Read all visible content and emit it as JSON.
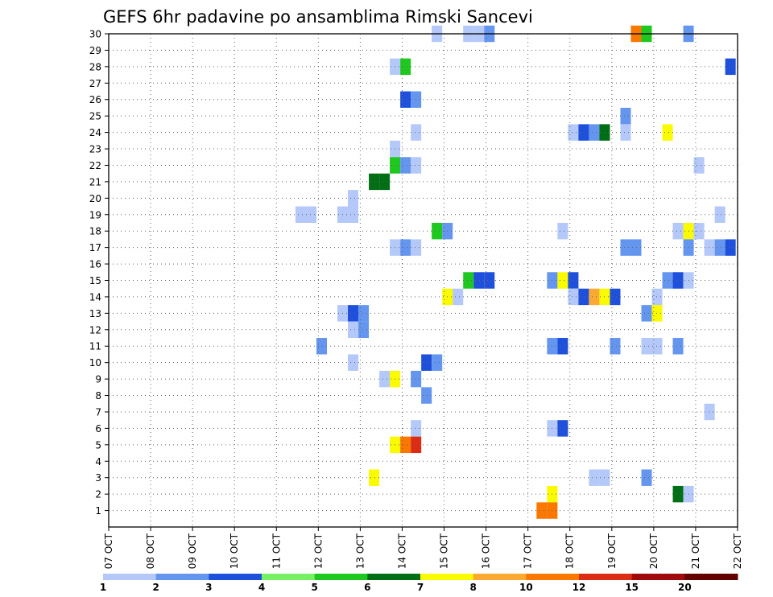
{
  "chart_data": {
    "type": "heatmap",
    "title": "GEFS 6hr padavine po ansamblima Rimski Sancevi",
    "xlabel": "",
    "ylabel": "",
    "x_tick_labels": [
      "07 OCT",
      "08 OCT",
      "09 OCT",
      "10 OCT",
      "11 OCT",
      "12 OCT",
      "13 OCT",
      "14 OCT",
      "15 OCT",
      "16 OCT",
      "17 OCT",
      "18 OCT",
      "19 OCT",
      "20 OCT",
      "21 OCT",
      "22 OCT"
    ],
    "xlim_days": [
      7,
      22
    ],
    "y_tick_labels": [
      "1",
      "2",
      "3",
      "4",
      "5",
      "6",
      "7",
      "8",
      "9",
      "10",
      "11",
      "12",
      "13",
      "14",
      "15",
      "16",
      "17",
      "18",
      "19",
      "20",
      "21",
      "22",
      "23",
      "24",
      "25",
      "26",
      "27",
      "28",
      "29",
      "30"
    ],
    "ylim_members": [
      0,
      30
    ],
    "grid": true,
    "colorbar": {
      "placement": "bottom",
      "labels": [
        "1",
        "2",
        "3",
        "4",
        "5",
        "6",
        "7",
        "8",
        "10",
        "12",
        "15",
        "20"
      ],
      "colors": [
        "#b4c8fa",
        "#6496f0",
        "#1e50dc",
        "#78f064",
        "#1ec81e",
        "#006e14",
        "#fafa00",
        "#faaa32",
        "#fa7800",
        "#dc2d14",
        "#a00a0a",
        "#640000"
      ]
    },
    "cells": [
      {
        "m": 30,
        "d": 14.83,
        "v": 1
      },
      {
        "m": 30,
        "d": 15.58,
        "v": 1
      },
      {
        "m": 30,
        "d": 15.83,
        "v": 1
      },
      {
        "m": 30,
        "d": 16.08,
        "v": 2
      },
      {
        "m": 30,
        "d": 19.58,
        "v": 10
      },
      {
        "m": 30,
        "d": 19.83,
        "v": 5
      },
      {
        "m": 30,
        "d": 20.83,
        "v": 2
      },
      {
        "m": 28,
        "d": 13.83,
        "v": 1
      },
      {
        "m": 28,
        "d": 14.08,
        "v": 5
      },
      {
        "m": 28,
        "d": 21.83,
        "v": 3
      },
      {
        "m": 26,
        "d": 14.08,
        "v": 3
      },
      {
        "m": 26,
        "d": 14.33,
        "v": 2
      },
      {
        "m": 25,
        "d": 19.33,
        "v": 2
      },
      {
        "m": 24,
        "d": 14.33,
        "v": 1
      },
      {
        "m": 24,
        "d": 18.08,
        "v": 1
      },
      {
        "m": 24,
        "d": 18.33,
        "v": 3
      },
      {
        "m": 24,
        "d": 18.58,
        "v": 2
      },
      {
        "m": 24,
        "d": 18.83,
        "v": 6
      },
      {
        "m": 24,
        "d": 19.33,
        "v": 1
      },
      {
        "m": 24,
        "d": 20.33,
        "v": 7
      },
      {
        "m": 23,
        "d": 13.83,
        "v": 1
      },
      {
        "m": 22,
        "d": 13.83,
        "v": 5
      },
      {
        "m": 22,
        "d": 14.08,
        "v": 2
      },
      {
        "m": 22,
        "d": 14.33,
        "v": 1
      },
      {
        "m": 22,
        "d": 21.08,
        "v": 1
      },
      {
        "m": 21,
        "d": 13.33,
        "v": 6
      },
      {
        "m": 21,
        "d": 13.58,
        "v": 6
      },
      {
        "m": 20,
        "d": 12.83,
        "v": 1
      },
      {
        "m": 19,
        "d": 11.58,
        "v": 1
      },
      {
        "m": 19,
        "d": 11.83,
        "v": 1
      },
      {
        "m": 19,
        "d": 12.58,
        "v": 1
      },
      {
        "m": 19,
        "d": 12.83,
        "v": 1
      },
      {
        "m": 19,
        "d": 21.58,
        "v": 1
      },
      {
        "m": 18,
        "d": 14.83,
        "v": 5
      },
      {
        "m": 18,
        "d": 15.08,
        "v": 2
      },
      {
        "m": 18,
        "d": 17.83,
        "v": 1
      },
      {
        "m": 18,
        "d": 20.58,
        "v": 1
      },
      {
        "m": 18,
        "d": 20.83,
        "v": 7
      },
      {
        "m": 18,
        "d": 21.08,
        "v": 1
      },
      {
        "m": 17,
        "d": 13.83,
        "v": 1
      },
      {
        "m": 17,
        "d": 14.08,
        "v": 2
      },
      {
        "m": 17,
        "d": 14.33,
        "v": 1
      },
      {
        "m": 17,
        "d": 19.33,
        "v": 2
      },
      {
        "m": 17,
        "d": 19.58,
        "v": 2
      },
      {
        "m": 17,
        "d": 20.83,
        "v": 2
      },
      {
        "m": 17,
        "d": 21.33,
        "v": 1
      },
      {
        "m": 17,
        "d": 21.58,
        "v": 2
      },
      {
        "m": 17,
        "d": 21.83,
        "v": 3
      },
      {
        "m": 15,
        "d": 15.58,
        "v": 5
      },
      {
        "m": 15,
        "d": 15.83,
        "v": 3
      },
      {
        "m": 15,
        "d": 16.08,
        "v": 3
      },
      {
        "m": 15,
        "d": 17.58,
        "v": 2
      },
      {
        "m": 15,
        "d": 17.83,
        "v": 7
      },
      {
        "m": 15,
        "d": 18.08,
        "v": 3
      },
      {
        "m": 15,
        "d": 20.33,
        "v": 2
      },
      {
        "m": 15,
        "d": 20.58,
        "v": 3
      },
      {
        "m": 15,
        "d": 20.83,
        "v": 1
      },
      {
        "m": 14,
        "d": 15.08,
        "v": 7
      },
      {
        "m": 14,
        "d": 15.33,
        "v": 1
      },
      {
        "m": 14,
        "d": 18.08,
        "v": 1
      },
      {
        "m": 14,
        "d": 18.33,
        "v": 3
      },
      {
        "m": 14,
        "d": 18.58,
        "v": 8
      },
      {
        "m": 14,
        "d": 18.83,
        "v": 7
      },
      {
        "m": 14,
        "d": 19.08,
        "v": 3
      },
      {
        "m": 14,
        "d": 20.08,
        "v": 1
      },
      {
        "m": 13,
        "d": 12.58,
        "v": 1
      },
      {
        "m": 13,
        "d": 12.83,
        "v": 3
      },
      {
        "m": 13,
        "d": 13.08,
        "v": 2
      },
      {
        "m": 13,
        "d": 19.83,
        "v": 2
      },
      {
        "m": 13,
        "d": 20.08,
        "v": 7
      },
      {
        "m": 12,
        "d": 12.83,
        "v": 1
      },
      {
        "m": 12,
        "d": 13.08,
        "v": 2
      },
      {
        "m": 11,
        "d": 12.08,
        "v": 2
      },
      {
        "m": 11,
        "d": 17.58,
        "v": 2
      },
      {
        "m": 11,
        "d": 17.83,
        "v": 3
      },
      {
        "m": 11,
        "d": 19.08,
        "v": 2
      },
      {
        "m": 11,
        "d": 19.83,
        "v": 1
      },
      {
        "m": 11,
        "d": 20.08,
        "v": 1
      },
      {
        "m": 11,
        "d": 20.58,
        "v": 2
      },
      {
        "m": 10,
        "d": 12.83,
        "v": 1
      },
      {
        "m": 10,
        "d": 14.58,
        "v": 3
      },
      {
        "m": 10,
        "d": 14.83,
        "v": 2
      },
      {
        "m": 9,
        "d": 13.58,
        "v": 1
      },
      {
        "m": 9,
        "d": 13.83,
        "v": 7
      },
      {
        "m": 9,
        "d": 14.33,
        "v": 2
      },
      {
        "m": 8,
        "d": 14.58,
        "v": 2
      },
      {
        "m": 7,
        "d": 21.33,
        "v": 1
      },
      {
        "m": 6,
        "d": 14.33,
        "v": 1
      },
      {
        "m": 6,
        "d": 17.58,
        "v": 1
      },
      {
        "m": 6,
        "d": 17.83,
        "v": 3
      },
      {
        "m": 5,
        "d": 13.83,
        "v": 7
      },
      {
        "m": 5,
        "d": 14.08,
        "v": 10
      },
      {
        "m": 5,
        "d": 14.33,
        "v": 12
      },
      {
        "m": 3,
        "d": 13.33,
        "v": 7
      },
      {
        "m": 3,
        "d": 18.58,
        "v": 1
      },
      {
        "m": 3,
        "d": 18.83,
        "v": 1
      },
      {
        "m": 3,
        "d": 19.83,
        "v": 2
      },
      {
        "m": 2,
        "d": 17.58,
        "v": 7
      },
      {
        "m": 2,
        "d": 20.58,
        "v": 6
      },
      {
        "m": 2,
        "d": 20.83,
        "v": 1
      },
      {
        "m": 1,
        "d": 17.33,
        "v": 10
      },
      {
        "m": 1,
        "d": 17.58,
        "v": 10
      }
    ]
  }
}
